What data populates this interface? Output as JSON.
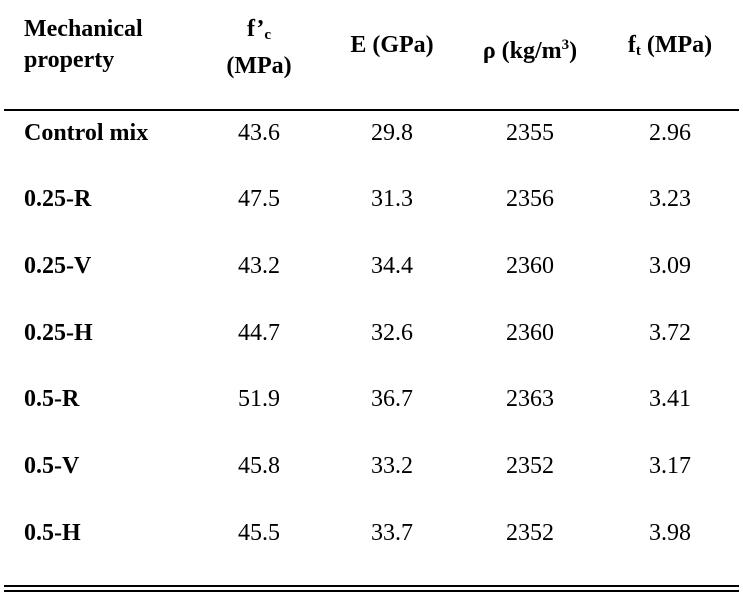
{
  "header": {
    "col0_line1": "Mechanical",
    "col0_line2": "property",
    "col1_main": "f’",
    "col1_sub": "c",
    "col1_unit": "(MPa)",
    "col2": "E (GPa)",
    "col3_pre": "ρ (kg/m",
    "col3_sup": "3",
    "col3_post": ")",
    "col4_main": "f",
    "col4_sub": "t",
    "col4_post": " (MPa)"
  },
  "rows": [
    {
      "label": "Control mix",
      "fc": "43.6",
      "E": "29.8",
      "rho": "2355",
      "ft": "2.96"
    },
    {
      "label": "0.25-R",
      "fc": "47.5",
      "E": "31.3",
      "rho": "2356",
      "ft": "3.23"
    },
    {
      "label": "0.25-V",
      "fc": "43.2",
      "E": "34.4",
      "rho": "2360",
      "ft": "3.09"
    },
    {
      "label": "0.25-H",
      "fc": "44.7",
      "E": "32.6",
      "rho": "2360",
      "ft": "3.72"
    },
    {
      "label": "0.5-R",
      "fc": "51.9",
      "E": "36.7",
      "rho": "2363",
      "ft": "3.41"
    },
    {
      "label": "0.5-V",
      "fc": "45.8",
      "E": "33.2",
      "rho": "2352",
      "ft": "3.17"
    },
    {
      "label": "0.5-H",
      "fc": "45.5",
      "E": "33.7",
      "rho": "2352",
      "ft": "3.98"
    }
  ]
}
